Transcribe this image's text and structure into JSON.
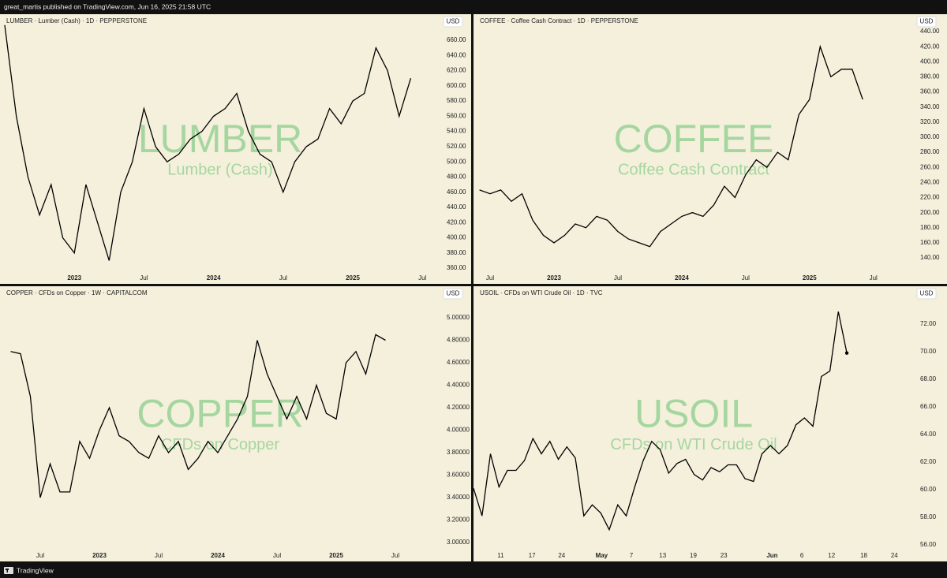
{
  "header": {
    "text": "great_martis published on TradingView.com, Jun 16, 2025 21:58 UTC"
  },
  "footer": {
    "brand": "TradingView"
  },
  "chart_data": [
    {
      "type": "line",
      "symbol_line": "LUMBER · Lumber (Cash) · 1D · PEPPERSTONE",
      "currency": "USD",
      "watermark": "LUMBER",
      "watermark_subtitle": "Lumber (Cash)",
      "color": "#000000",
      "grid": false,
      "values": [
        680,
        560,
        480,
        430,
        470,
        400,
        380,
        470,
        420,
        370,
        460,
        500,
        570,
        520,
        500,
        510,
        530,
        540,
        560,
        570,
        590,
        540,
        510,
        500,
        460,
        500,
        520,
        530,
        570,
        550,
        580,
        590,
        650,
        620,
        560,
        610
      ],
      "xlim": [
        -0.41,
        37.55
      ],
      "xticks": [
        {
          "value": 6,
          "label": "2023",
          "bold": true
        },
        {
          "value": 12,
          "label": "Jul"
        },
        {
          "value": 18,
          "label": "2024",
          "bold": true
        },
        {
          "value": 24,
          "label": "Jul"
        },
        {
          "value": 30,
          "label": "2025",
          "bold": true
        },
        {
          "value": 36,
          "label": "Jul"
        }
      ],
      "ylim": [
        353.8,
        694.3
      ],
      "yticks": [
        {
          "value": 360,
          "label": "360.00"
        },
        {
          "value": 380,
          "label": "380.00"
        },
        {
          "value": 400,
          "label": "400.00"
        },
        {
          "value": 420,
          "label": "420.00"
        },
        {
          "value": 440,
          "label": "440.00"
        },
        {
          "value": 460,
          "label": "460.00"
        },
        {
          "value": 480,
          "label": "480.00"
        },
        {
          "value": 500,
          "label": "500.00"
        },
        {
          "value": 520,
          "label": "520.00"
        },
        {
          "value": 540,
          "label": "540.00"
        },
        {
          "value": 560,
          "label": "560.00"
        },
        {
          "value": 580,
          "label": "580.00"
        },
        {
          "value": 600,
          "label": "600.00"
        },
        {
          "value": 620,
          "label": "620.00"
        },
        {
          "value": 640,
          "label": "640.00"
        },
        {
          "value": 660,
          "label": "660.00"
        }
      ]
    },
    {
      "type": "line",
      "symbol_line": "COFFEE · Coffee Cash Contract · 1D · PEPPERSTONE",
      "currency": "USD",
      "watermark": "COFFEE",
      "watermark_subtitle": "Coffee Cash Contract",
      "color": "#000000",
      "grid": false,
      "values": [
        230,
        225,
        230,
        215,
        225,
        190,
        170,
        160,
        170,
        185,
        180,
        195,
        190,
        175,
        165,
        160,
        155,
        175,
        185,
        195,
        200,
        195,
        210,
        235,
        220,
        250,
        270,
        260,
        280,
        270,
        330,
        350,
        420,
        380,
        390,
        390,
        350
      ],
      "xlim": [
        -0.56,
        40.8
      ],
      "xticks": [
        {
          "value": 1,
          "label": "Jul"
        },
        {
          "value": 7,
          "label": "2023",
          "bold": true
        },
        {
          "value": 13,
          "label": "Jul"
        },
        {
          "value": 19,
          "label": "2024",
          "bold": true
        },
        {
          "value": 25,
          "label": "Jul"
        },
        {
          "value": 31,
          "label": "2025",
          "bold": true
        },
        {
          "value": 37,
          "label": "Jul"
        }
      ],
      "ylim": [
        120.2,
        463.0
      ],
      "yticks": [
        {
          "value": 140,
          "label": "140.00"
        },
        {
          "value": 160,
          "label": "160.00"
        },
        {
          "value": 180,
          "label": "180.00"
        },
        {
          "value": 200,
          "label": "200.00"
        },
        {
          "value": 220,
          "label": "220.00"
        },
        {
          "value": 240,
          "label": "240.00"
        },
        {
          "value": 260,
          "label": "260.00"
        },
        {
          "value": 280,
          "label": "280.00"
        },
        {
          "value": 300,
          "label": "300.00"
        },
        {
          "value": 320,
          "label": "320.00"
        },
        {
          "value": 340,
          "label": "340.00"
        },
        {
          "value": 360,
          "label": "360.00"
        },
        {
          "value": 380,
          "label": "380.00"
        },
        {
          "value": 400,
          "label": "400.00"
        },
        {
          "value": 420,
          "label": "420.00"
        },
        {
          "value": 440,
          "label": "440.00"
        }
      ]
    },
    {
      "type": "line",
      "symbol_line": "COPPER · CFDs on Copper · 1W · CAPITALCOM",
      "currency": "USD",
      "watermark": "COPPER",
      "watermark_subtitle": "CFDs on Copper",
      "color": "#000000",
      "grid": false,
      "values": [
        4.7,
        4.68,
        4.3,
        3.4,
        3.7,
        3.45,
        3.45,
        3.9,
        3.75,
        4.0,
        4.2,
        3.95,
        3.9,
        3.8,
        3.75,
        3.95,
        3.8,
        3.9,
        3.65,
        3.75,
        3.9,
        3.8,
        3.95,
        4.1,
        4.3,
        4.8,
        4.5,
        4.3,
        4.1,
        4.3,
        4.1,
        4.4,
        4.15,
        4.1,
        4.6,
        4.7,
        4.5,
        4.85,
        4.8
      ],
      "xlim": [
        -1.08,
        43.56
      ],
      "xticks": [
        {
          "value": 3,
          "label": "Jul"
        },
        {
          "value": 9,
          "label": "2023",
          "bold": true
        },
        {
          "value": 15,
          "label": "Jul"
        },
        {
          "value": 21,
          "label": "2024",
          "bold": true
        },
        {
          "value": 27,
          "label": "Jul"
        },
        {
          "value": 33,
          "label": "2025",
          "bold": true
        },
        {
          "value": 39,
          "label": "Jul"
        }
      ],
      "ylim": [
        2.93,
        5.281
      ],
      "yticks": [
        {
          "value": 3.0,
          "label": "3.00000"
        },
        {
          "value": 3.2,
          "label": "3.20000"
        },
        {
          "value": 3.4,
          "label": "3.40000"
        },
        {
          "value": 3.6,
          "label": "3.60000"
        },
        {
          "value": 3.8,
          "label": "3.80000"
        },
        {
          "value": 4.0,
          "label": "4.00000"
        },
        {
          "value": 4.2,
          "label": "4.20000"
        },
        {
          "value": 4.4,
          "label": "4.40000"
        },
        {
          "value": 4.6,
          "label": "4.60000"
        },
        {
          "value": 4.8,
          "label": "4.80000"
        },
        {
          "value": 5.0,
          "label": "5.00000"
        }
      ]
    },
    {
      "type": "line",
      "symbol_line": "USOIL · CFDs on WTI Crude Oil · 1D · TVC",
      "currency": "USD",
      "watermark": "USOIL",
      "watermark_subtitle": "CFDs on WTI Crude Oil",
      "color": "#000000",
      "grid": false,
      "end_marker": true,
      "values": [
        60.1,
        58.1,
        62.6,
        60.2,
        61.4,
        61.4,
        62.1,
        63.7,
        62.6,
        63.5,
        62.2,
        63.1,
        62.3,
        58.1,
        58.9,
        58.3,
        57.1,
        58.9,
        58.1,
        60.2,
        62.1,
        63.5,
        62.9,
        61.2,
        61.9,
        62.2,
        61.1,
        60.7,
        61.6,
        61.3,
        61.8,
        61.8,
        60.8,
        60.6,
        62.6,
        63.2,
        62.6,
        63.2,
        64.7,
        65.2,
        64.6,
        68.2,
        68.6,
        72.9,
        69.9
      ],
      "xlim": [
        0,
        51.9
      ],
      "xticks": [
        {
          "value": 3.2,
          "label": "11"
        },
        {
          "value": 6.9,
          "label": "17"
        },
        {
          "value": 10.4,
          "label": "24"
        },
        {
          "value": 15.1,
          "label": "May",
          "bold": true
        },
        {
          "value": 18.6,
          "label": "7"
        },
        {
          "value": 22.3,
          "label": "13"
        },
        {
          "value": 25.9,
          "label": "19"
        },
        {
          "value": 29.5,
          "label": "23"
        },
        {
          "value": 35.2,
          "label": "Jun",
          "bold": true
        },
        {
          "value": 38.7,
          "label": "6"
        },
        {
          "value": 42.2,
          "label": "12"
        },
        {
          "value": 46.0,
          "label": "18"
        },
        {
          "value": 49.6,
          "label": "24"
        }
      ],
      "ylim": [
        55.6,
        74.74
      ],
      "yticks": [
        {
          "value": 56,
          "label": "56.00"
        },
        {
          "value": 58,
          "label": "58.00"
        },
        {
          "value": 60,
          "label": "60.00"
        },
        {
          "value": 62,
          "label": "62.00"
        },
        {
          "value": 64,
          "label": "64.00"
        },
        {
          "value": 66,
          "label": "66.00"
        },
        {
          "value": 68,
          "label": "68.00"
        },
        {
          "value": 70,
          "label": "70.00"
        },
        {
          "value": 72,
          "label": "72.00"
        }
      ]
    }
  ]
}
